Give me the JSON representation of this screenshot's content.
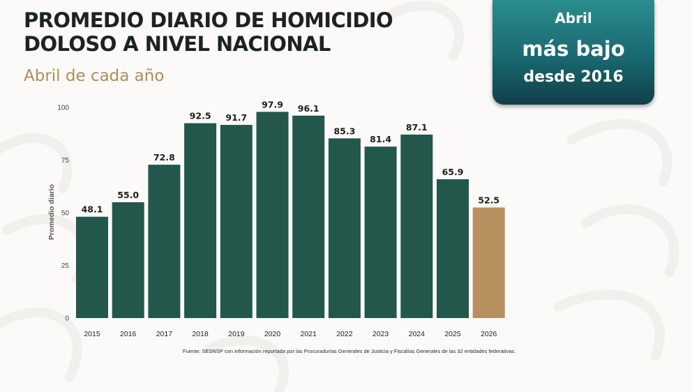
{
  "header": {
    "title_line1": "PROMEDIO DIARIO DE HOMICIDIO",
    "title_line2": "DOLOSO A NIVEL NACIONAL",
    "subtitle": "Abril de cada año"
  },
  "badge": {
    "line1": "Abril",
    "line2": "más bajo",
    "line3": "desde 2016"
  },
  "source": "Fuente: SESNSP con información reportada por las Procuradurías Generales de Justicia y Fiscalías Generales de las 32 entidades federativas.",
  "colors": {
    "bar": "#23574b",
    "highlight": "#b89060",
    "badge_top": "#2b8d8d",
    "badge_bottom": "#103f49",
    "subtitle": "#b08d5b"
  },
  "chart_data": {
    "type": "bar",
    "title": "PROMEDIO DIARIO DE HOMICIDIO DOLOSO A NIVEL NACIONAL",
    "subtitle": "Abril de cada año",
    "xlabel": "",
    "ylabel": "Promedio diario",
    "categories": [
      "2015",
      "2016",
      "2017",
      "2018",
      "2019",
      "2020",
      "2021",
      "2022",
      "2023",
      "2024",
      "2025",
      "2026"
    ],
    "values": [
      48.1,
      55.0,
      72.8,
      92.5,
      91.7,
      97.9,
      96.1,
      85.3,
      81.4,
      87.1,
      65.9,
      52.5
    ],
    "value_labels": [
      "48.1",
      "55.0",
      "72.8",
      "92.5",
      "91.7",
      "97.9",
      "96.1",
      "85.3",
      "81.4",
      "87.1",
      "65.9",
      "52.5"
    ],
    "highlight_category": "2026",
    "ylim": [
      0,
      100
    ],
    "yticks": [
      0,
      25,
      50,
      75,
      100
    ],
    "grid": false,
    "legend": "none"
  }
}
